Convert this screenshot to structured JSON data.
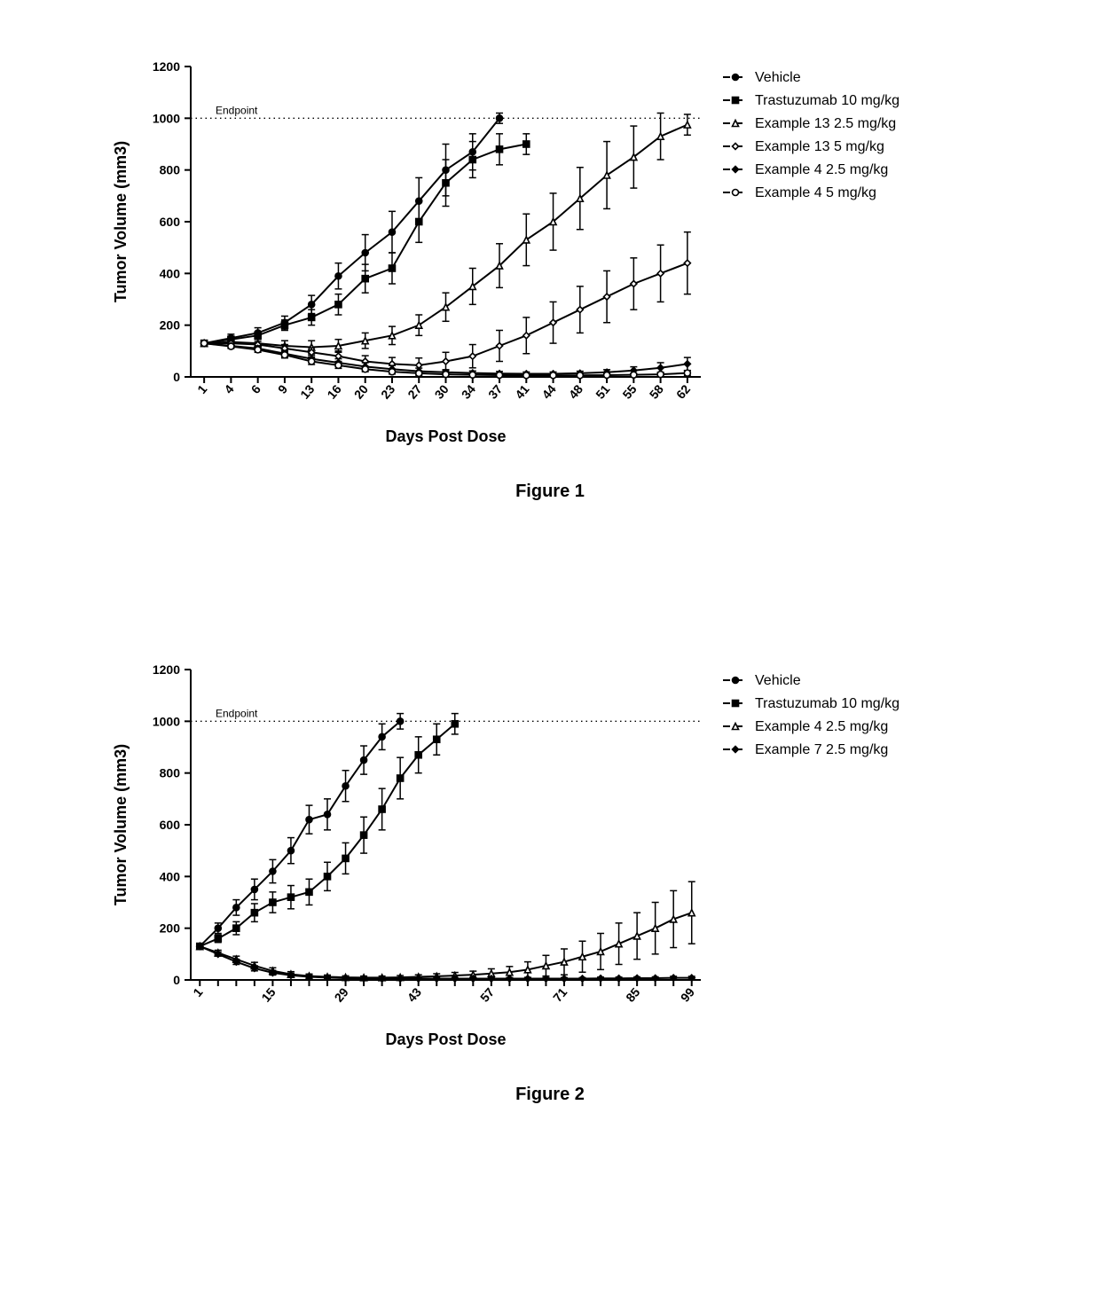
{
  "figure1": {
    "type": "line-errorbar",
    "title": "",
    "xlabel": "Days Post Dose",
    "ylabel": "Tumor Volume (mm3)",
    "label_fontsize": 18,
    "tick_fontsize": 14,
    "caption": "Figure 1",
    "background_color": "#ffffff",
    "axis_color": "#000000",
    "line_width": 2,
    "error_cap_width": 8,
    "marker_size": 7,
    "endpoint_line": {
      "y": 1000,
      "label": "Endpoint",
      "label_fontsize": 12,
      "style": "dotted",
      "color": "#000000"
    },
    "xlim": [
      0,
      24
    ],
    "x_index_based": true,
    "x_categories": [
      "1",
      "4",
      "6",
      "9",
      "13",
      "16",
      "20",
      "23",
      "27",
      "30",
      "34",
      "37",
      "41",
      "44",
      "48",
      "51",
      "55",
      "58",
      "62"
    ],
    "ylim": [
      0,
      1200
    ],
    "ytick_step": 200,
    "legend_position": "right",
    "series": [
      {
        "name": "Vehicle",
        "marker": "circle-filled",
        "color": "#000000",
        "y": [
          130,
          150,
          170,
          210,
          280,
          390,
          480,
          560,
          680,
          800,
          870,
          1000,
          null,
          null,
          null,
          null,
          null,
          null,
          null
        ],
        "err": [
          0,
          15,
          20,
          25,
          35,
          50,
          70,
          80,
          90,
          100,
          70,
          20,
          0,
          0,
          0,
          0,
          0,
          0,
          0
        ]
      },
      {
        "name": "Trastuzumab 10 mg/kg",
        "marker": "square-filled",
        "color": "#000000",
        "y": [
          130,
          145,
          160,
          200,
          230,
          280,
          380,
          420,
          600,
          750,
          840,
          880,
          900,
          null,
          null,
          null,
          null,
          null,
          null
        ],
        "err": [
          0,
          10,
          15,
          20,
          30,
          40,
          55,
          60,
          80,
          90,
          70,
          60,
          40,
          0,
          0,
          0,
          0,
          0,
          0
        ]
      },
      {
        "name": "Example 13 2.5 mg/kg",
        "marker": "triangle-open",
        "color": "#000000",
        "y": [
          130,
          135,
          130,
          120,
          115,
          120,
          140,
          160,
          200,
          270,
          350,
          430,
          530,
          600,
          690,
          780,
          850,
          930,
          975
        ],
        "err": [
          0,
          10,
          15,
          20,
          25,
          25,
          30,
          35,
          40,
          55,
          70,
          85,
          100,
          110,
          120,
          130,
          120,
          90,
          40
        ]
      },
      {
        "name": "Example 13 5 mg/kg",
        "marker": "diamond-open",
        "color": "#000000",
        "y": [
          130,
          130,
          125,
          110,
          95,
          80,
          60,
          50,
          45,
          60,
          80,
          120,
          160,
          210,
          260,
          310,
          360,
          400,
          440
        ],
        "err": [
          0,
          10,
          12,
          15,
          18,
          20,
          22,
          25,
          28,
          35,
          45,
          60,
          70,
          80,
          90,
          100,
          100,
          110,
          120
        ]
      },
      {
        "name": "Example 4 2.5 mg/kg",
        "marker": "diamond-filled",
        "color": "#000000",
        "y": [
          130,
          120,
          110,
          90,
          70,
          55,
          40,
          30,
          22,
          18,
          15,
          13,
          12,
          12,
          14,
          18,
          25,
          35,
          50
        ],
        "err": [
          0,
          8,
          10,
          12,
          14,
          15,
          15,
          14,
          12,
          10,
          8,
          8,
          7,
          7,
          8,
          10,
          14,
          20,
          25
        ]
      },
      {
        "name": "Example 4 5 mg/kg",
        "marker": "circle-open",
        "color": "#000000",
        "y": [
          130,
          118,
          105,
          85,
          60,
          45,
          30,
          20,
          14,
          10,
          8,
          7,
          6,
          6,
          6,
          7,
          8,
          10,
          15
        ],
        "err": [
          0,
          8,
          10,
          12,
          12,
          12,
          10,
          9,
          8,
          7,
          6,
          5,
          5,
          5,
          5,
          5,
          6,
          8,
          10
        ]
      }
    ]
  },
  "figure2": {
    "type": "line-errorbar",
    "title": "",
    "xlabel": "Days Post Dose",
    "ylabel": "Tumor Volume (mm3)",
    "label_fontsize": 18,
    "tick_fontsize": 14,
    "caption": "Figure 2",
    "background_color": "#ffffff",
    "axis_color": "#000000",
    "line_width": 2,
    "error_cap_width": 8,
    "marker_size": 7,
    "endpoint_line": {
      "y": 1000,
      "label": "Endpoint",
      "label_fontsize": 12,
      "style": "dotted",
      "color": "#000000"
    },
    "xlim": [
      0,
      27
    ],
    "x_index_based": true,
    "x_categories": [
      "1",
      "5",
      "9",
      "13",
      "15",
      "19",
      "23",
      "27",
      "29",
      "33",
      "37",
      "41",
      "43",
      "47",
      "51",
      "55",
      "57",
      "61",
      "65",
      "69",
      "71",
      "75",
      "79",
      "83",
      "85",
      "89",
      "93",
      "99"
    ],
    "x_tick_labels": [
      "1",
      "",
      "",
      "",
      "15",
      "",
      "",
      "",
      "29",
      "",
      "",
      "",
      "43",
      "",
      "",
      "",
      "57",
      "",
      "",
      "",
      "71",
      "",
      "",
      "",
      "85",
      "",
      "",
      "99"
    ],
    "ylim": [
      0,
      1200
    ],
    "ytick_step": 200,
    "legend_position": "right",
    "series": [
      {
        "name": "Vehicle",
        "marker": "circle-filled",
        "color": "#000000",
        "y": [
          130,
          200,
          280,
          350,
          420,
          500,
          620,
          640,
          750,
          850,
          940,
          1000,
          null,
          null,
          null,
          null,
          null,
          null,
          null,
          null,
          null,
          null,
          null,
          null,
          null,
          null,
          null,
          null
        ],
        "err": [
          0,
          20,
          30,
          40,
          45,
          50,
          55,
          60,
          60,
          55,
          50,
          30,
          0,
          0,
          0,
          0,
          0,
          0,
          0,
          0,
          0,
          0,
          0,
          0,
          0,
          0,
          0,
          0
        ]
      },
      {
        "name": "Trastuzumab 10 mg/kg",
        "marker": "square-filled",
        "color": "#000000",
        "y": [
          130,
          160,
          200,
          260,
          300,
          320,
          340,
          400,
          470,
          560,
          660,
          780,
          870,
          930,
          990,
          null,
          null,
          null,
          null,
          null,
          null,
          null,
          null,
          null,
          null,
          null,
          null,
          null
        ],
        "err": [
          0,
          15,
          25,
          35,
          40,
          45,
          50,
          55,
          60,
          70,
          80,
          80,
          70,
          60,
          40,
          0,
          0,
          0,
          0,
          0,
          0,
          0,
          0,
          0,
          0,
          0,
          0,
          0
        ]
      },
      {
        "name": "Example 4 2.5 mg/kg",
        "marker": "triangle-open",
        "color": "#000000",
        "y": [
          130,
          105,
          80,
          55,
          35,
          22,
          15,
          12,
          10,
          9,
          9,
          10,
          12,
          14,
          17,
          20,
          25,
          30,
          40,
          55,
          70,
          90,
          110,
          140,
          170,
          200,
          235,
          260
        ],
        "err": [
          0,
          10,
          12,
          13,
          12,
          10,
          8,
          7,
          6,
          6,
          6,
          7,
          8,
          10,
          12,
          14,
          18,
          22,
          30,
          40,
          50,
          60,
          70,
          80,
          90,
          100,
          110,
          120
        ]
      },
      {
        "name": "Example 7 2.5 mg/kg",
        "marker": "diamond-filled",
        "color": "#000000",
        "y": [
          130,
          100,
          70,
          45,
          28,
          18,
          12,
          9,
          7,
          6,
          5,
          5,
          5,
          5,
          5,
          5,
          5,
          5,
          5,
          5,
          5,
          5,
          6,
          6,
          7,
          7,
          8,
          8
        ],
        "err": [
          0,
          8,
          10,
          10,
          9,
          8,
          7,
          6,
          5,
          4,
          4,
          4,
          4,
          4,
          4,
          4,
          4,
          4,
          4,
          4,
          4,
          4,
          5,
          5,
          5,
          5,
          6,
          6
        ]
      }
    ]
  }
}
